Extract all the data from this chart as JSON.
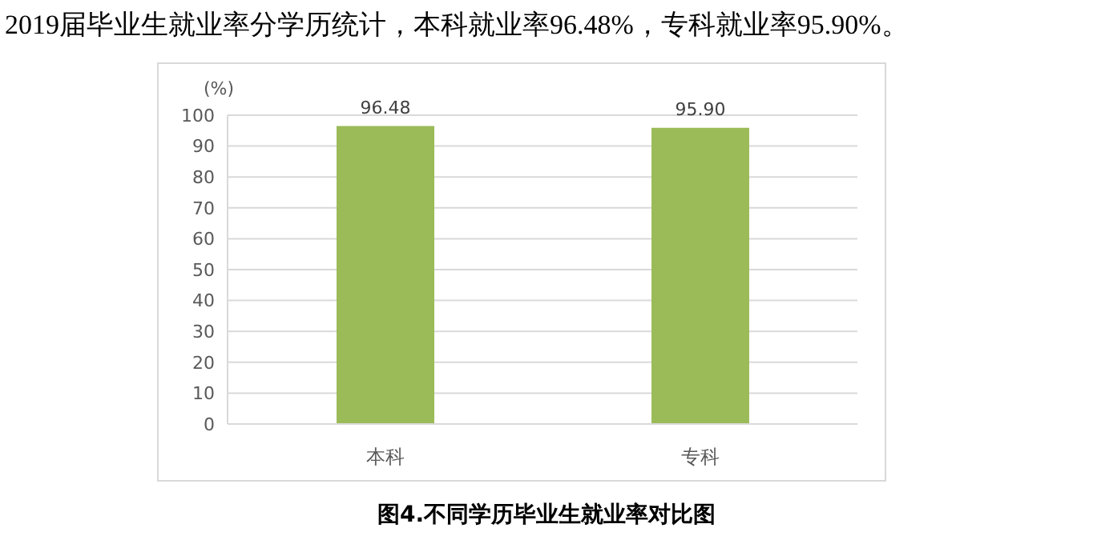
{
  "chart_data": {
    "type": "bar",
    "title": "2019届毕业生就业率分学历统计，本科就业率96.48%，专科就业率95.90%。",
    "ylabel": "(%)",
    "categories": [
      "本科",
      "专科"
    ],
    "values": [
      96.48,
      95.9
    ],
    "value_labels": [
      "96.48",
      "95.90"
    ],
    "color": "#9bbb59",
    "ylim": [
      0,
      100
    ],
    "yticks": [
      0,
      10,
      20,
      30,
      40,
      50,
      60,
      70,
      80,
      90,
      100
    ],
    "grid": "y",
    "annotations": [
      "图4.不同学历毕业生就业率对比图"
    ]
  }
}
